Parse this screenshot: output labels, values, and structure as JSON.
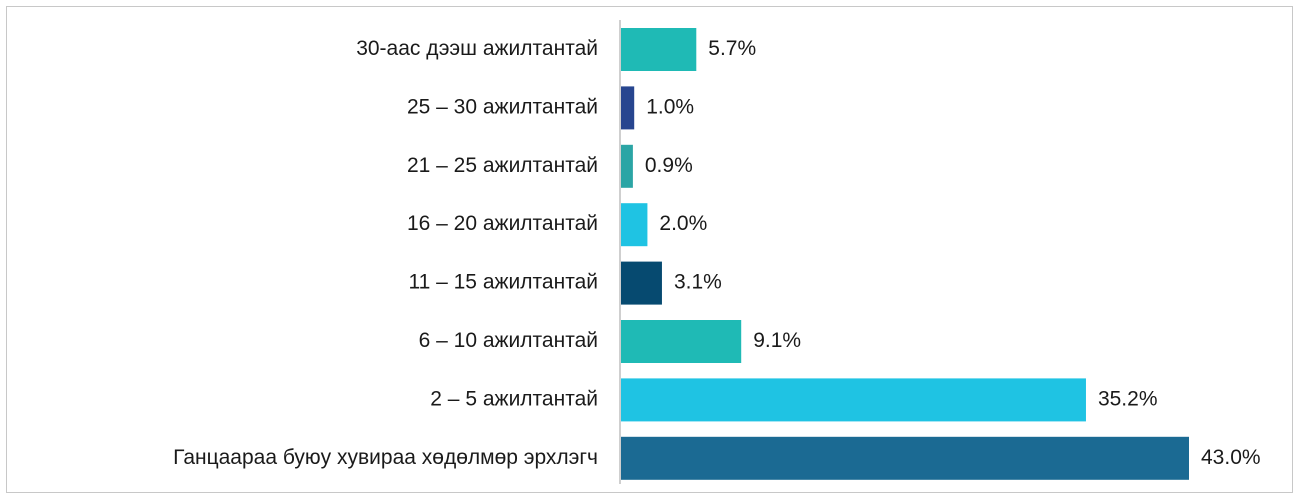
{
  "chart_data": {
    "type": "bar",
    "orientation": "horizontal",
    "categories": [
      "30-аас дээш ажилтантай",
      "25 – 30 ажилтантай",
      "21 – 25 ажилтантай",
      "16 – 20 ажилтантай",
      "11 – 15 ажилтантай",
      "6 – 10 ажилтантай",
      "2 – 5 ажилтантай",
      "Ганцаараа буюу хувираа хөдөлмөр эрхлэгч"
    ],
    "values": [
      5.7,
      1.0,
      0.9,
      2.0,
      3.1,
      9.1,
      35.2,
      43.0
    ],
    "value_labels": [
      "5.7%",
      "1.0%",
      "0.9%",
      "2.0%",
      "3.1%",
      "9.1%",
      "35.2%",
      "43.0%"
    ],
    "colors": [
      "#1fbab5",
      "#27458f",
      "#2ba5a5",
      "#1fc3e3",
      "#064a70",
      "#1fbab5",
      "#1fc3e3",
      "#1b6a93"
    ],
    "title": "",
    "xlabel": "",
    "ylabel": "",
    "xlim": [
      0,
      43.0
    ],
    "grid": false,
    "legend": "none"
  }
}
